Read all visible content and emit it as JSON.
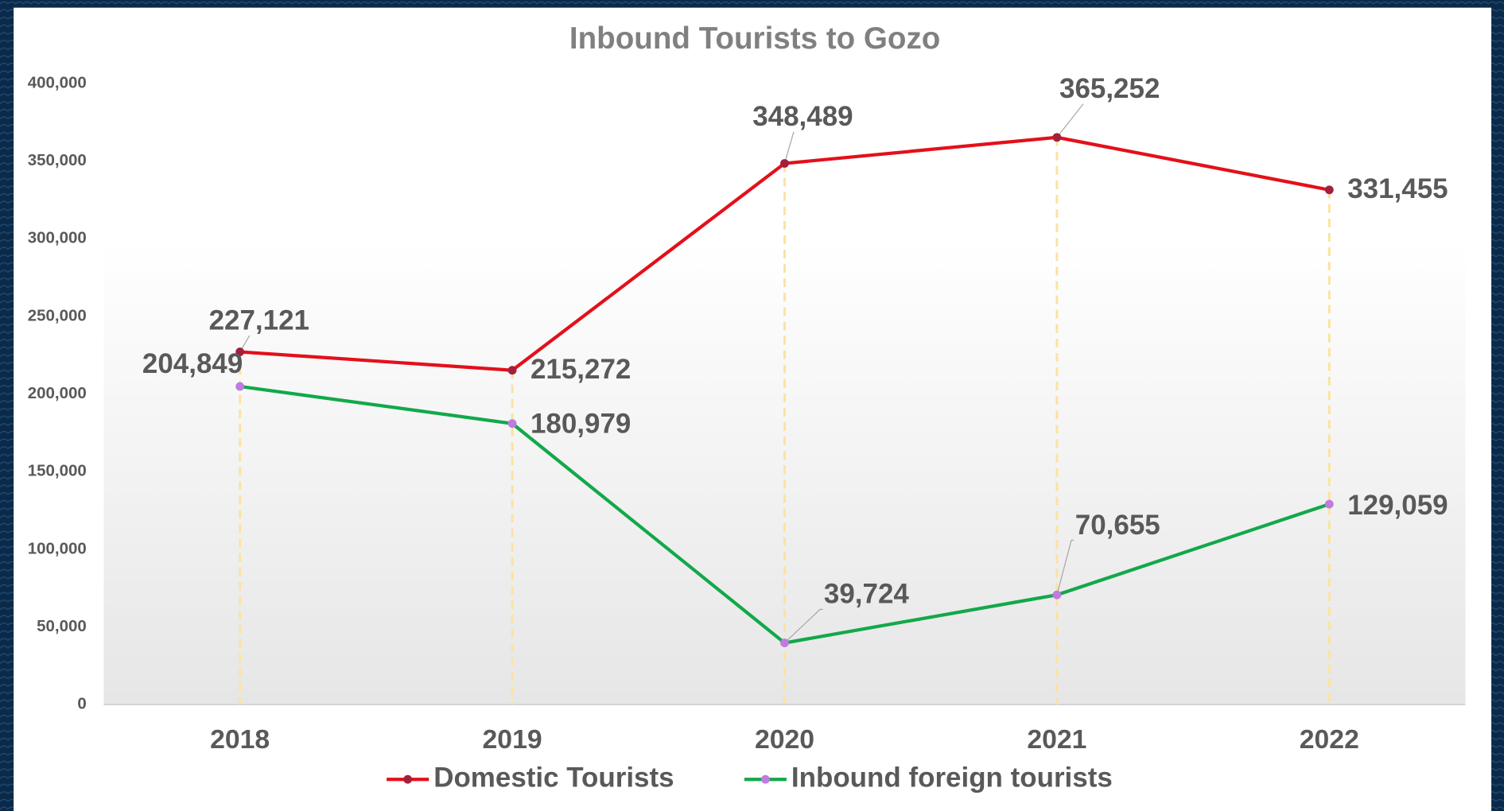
{
  "chart_data": {
    "type": "line",
    "title": "Inbound Tourists to Gozo",
    "categories": [
      "2018",
      "2019",
      "2020",
      "2021",
      "2022"
    ],
    "series": [
      {
        "name": "Domestic Tourists",
        "color": "#e3101a",
        "marker_color": "#a3203c",
        "values": [
          227121,
          215272,
          348489,
          365252,
          331455
        ],
        "value_labels": [
          "227,121",
          "215,272",
          "348,489",
          "365,252",
          "331,455"
        ]
      },
      {
        "name": "Inbound foreign tourists",
        "color": "#13a84a",
        "marker_color": "#c07ae0",
        "values": [
          204849,
          180979,
          39724,
          70655,
          129059
        ],
        "value_labels": [
          "204,849",
          "180,979",
          "39,724",
          "70,655",
          "129,059"
        ]
      }
    ],
    "ylim": [
      0,
      400000
    ],
    "yticks": [
      0,
      {
        "value": 50000,
        "label": "50,000"
      },
      {
        "value": 100000,
        "label": "100,000"
      },
      {
        "value": 150000,
        "label": "150,000"
      },
      {
        "value": 200000,
        "label": "200,000"
      },
      {
        "value": 250000,
        "label": "250,000"
      },
      {
        "value": 300000,
        "label": "300,000"
      },
      {
        "value": 350000,
        "label": "350,000"
      },
      {
        "value": 400000,
        "label": "400,000"
      }
    ],
    "drop_lines": true,
    "legend": "bottom"
  }
}
